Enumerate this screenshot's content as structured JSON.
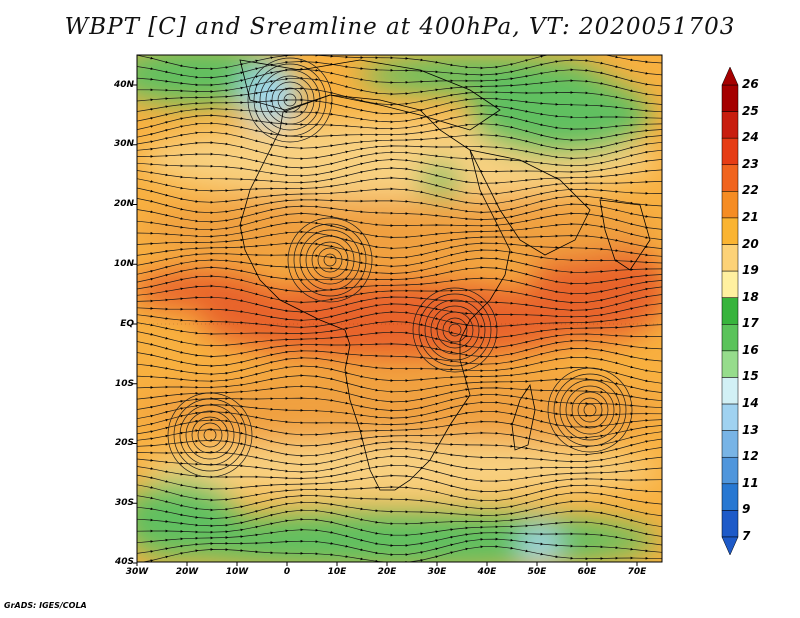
{
  "title": "WBPT [C] and Sreamline at 400hPa, VT: 2020051703",
  "credit": "GrADS: IGES/COLA",
  "lat_labels": [
    "40N",
    "30N",
    "20N",
    "10N",
    "EQ",
    "10S",
    "20S",
    "30S",
    "40S"
  ],
  "lon_labels": [
    "30W",
    "20W",
    "10W",
    "0",
    "10E",
    "20E",
    "30E",
    "40E",
    "50E",
    "60E",
    "70E"
  ],
  "colorbar": {
    "labels": [
      "26",
      "25",
      "24",
      "23",
      "22",
      "21",
      "20",
      "19",
      "18",
      "17",
      "16",
      "15",
      "14",
      "13",
      "12",
      "11",
      "9",
      "7"
    ],
    "colors": [
      "#a50000",
      "#c81e0f",
      "#e63c14",
      "#f0641e",
      "#f58c23",
      "#fab432",
      "#fcd278",
      "#fff0a0",
      "#37b43c",
      "#5ac35a",
      "#96dc8c",
      "#d2f0f5",
      "#a0d2f0",
      "#78b4e6",
      "#5096dc",
      "#2878d2",
      "#1e5ac8"
    ]
  },
  "map_extent": {
    "lon": [
      -30,
      75
    ],
    "lat": [
      -40,
      45
    ]
  }
}
